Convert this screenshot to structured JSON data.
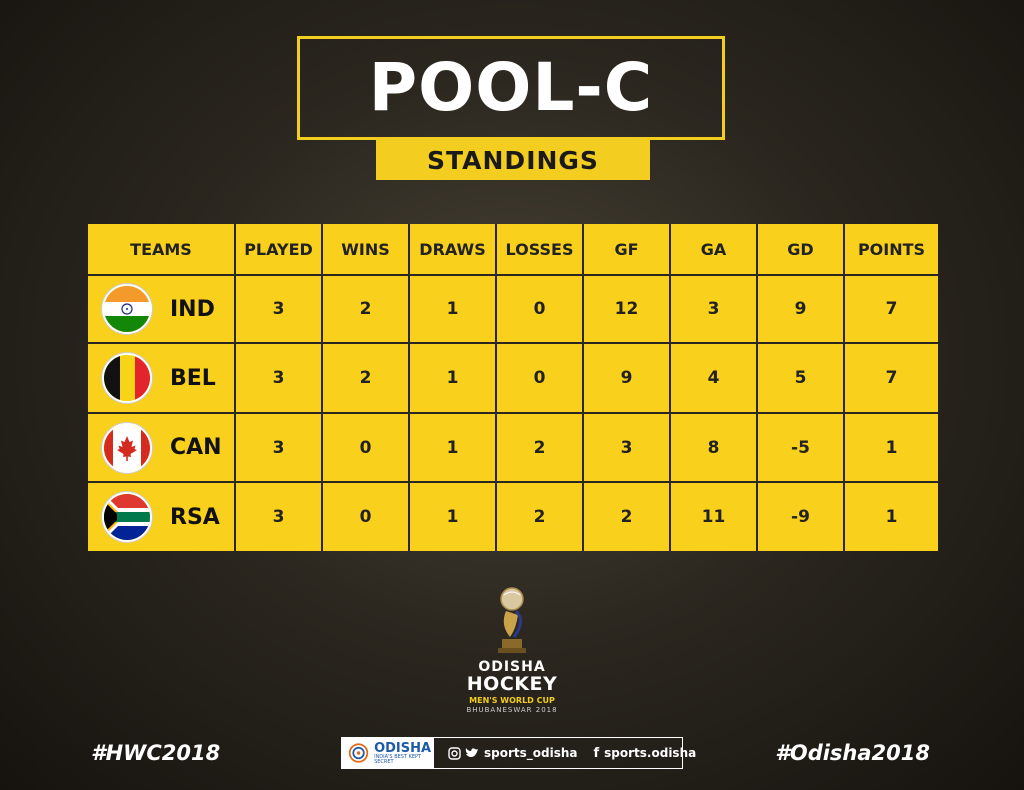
{
  "title": "POOL-C",
  "subtitle": "STANDINGS",
  "colors": {
    "accent_yellow": "#f9d01b",
    "frame_yellow": "#f3cd1f",
    "background": "#2c2820"
  },
  "table": {
    "headers": [
      "TEAMS",
      "PLAYED",
      "WINS",
      "DRAWS",
      "LOSSES",
      "GF",
      "GA",
      "GD",
      "POINTS"
    ],
    "rows": [
      {
        "team": "IND",
        "flag": "india-flag-icon",
        "values": [
          "3",
          "2",
          "1",
          "0",
          "12",
          "3",
          "9",
          "7"
        ]
      },
      {
        "team": "BEL",
        "flag": "belgium-flag-icon",
        "values": [
          "3",
          "2",
          "1",
          "0",
          "9",
          "4",
          "5",
          "7"
        ]
      },
      {
        "team": "CAN",
        "flag": "canada-flag-icon",
        "values": [
          "3",
          "0",
          "1",
          "2",
          "3",
          "8",
          "-5",
          "1"
        ]
      },
      {
        "team": "RSA",
        "flag": "south-africa-flag-icon",
        "values": [
          "3",
          "0",
          "1",
          "2",
          "2",
          "11",
          "-9",
          "1"
        ]
      }
    ]
  },
  "logo": {
    "line1": "ODISHA",
    "line2": "HOCKEY",
    "line3": "MEN'S WORLD CUP",
    "line4": "BHUBANESWAR 2018"
  },
  "footer": {
    "hashtag_left": "#HWC2018",
    "hashtag_right": "#Odisha2018",
    "brand_name": "ODISHA",
    "brand_tagline": "INDIA'S BEST KEPT SECRET",
    "handle_1": "sports_odisha",
    "handle_2": "sports.odisha"
  }
}
